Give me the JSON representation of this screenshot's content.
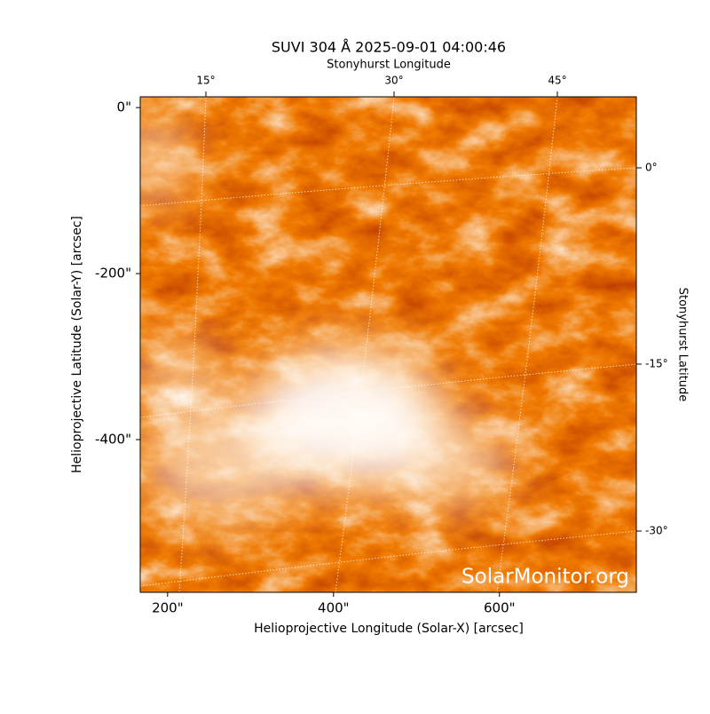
{
  "chart_data": {
    "type": "image",
    "title": "SUVI 304 Å 2025-09-01 04:00:46",
    "xlabel": "Helioprojective Longitude (Solar-X) [arcsec]",
    "ylabel": "Helioprojective Latitude (Solar-Y) [arcsec]",
    "x2label": "Stonyhurst Longitude",
    "y2label": "Stonyhurst Latitude",
    "xlim": [
      167,
      765
    ],
    "ylim": [
      -584,
      13
    ],
    "xticks": [
      {
        "value": 200,
        "label": "200\""
      },
      {
        "value": 400,
        "label": "400\""
      },
      {
        "value": 600,
        "label": "600\""
      }
    ],
    "yticks": [
      {
        "value": 0,
        "label": "0\""
      },
      {
        "value": -200,
        "label": "-200\""
      },
      {
        "value": -400,
        "label": "-400\""
      }
    ],
    "x2ticks": [
      {
        "value": 15,
        "label": "15°"
      },
      {
        "value": 30,
        "label": "30°"
      },
      {
        "value": 45,
        "label": "45°"
      }
    ],
    "y2ticks": [
      {
        "value": 0,
        "label": "0°"
      },
      {
        "value": -15,
        "label": "-15°"
      },
      {
        "value": -30,
        "label": "-30°"
      }
    ],
    "colors": [
      "#b33000",
      "#f07a00",
      "#ffffff"
    ],
    "watermark": "SolarMonitor.org"
  }
}
